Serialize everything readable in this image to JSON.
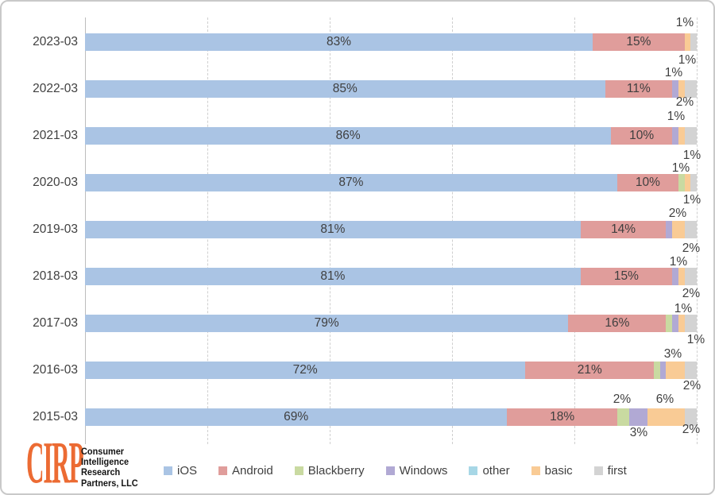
{
  "chart_data": {
    "type": "bar",
    "orientation": "horizontal",
    "stacked": true,
    "title": "",
    "xlabel": "",
    "ylabel": "",
    "xlim": [
      0,
      100
    ],
    "grid": "vertical-dashed",
    "gridline_percents": [
      0,
      20,
      40,
      60,
      80,
      100
    ],
    "legend_position": "bottom",
    "categories": [
      "2023-03",
      "2022-03",
      "2021-03",
      "2020-03",
      "2019-03",
      "2018-03",
      "2017-03",
      "2016-03",
      "2015-03"
    ],
    "series": [
      {
        "name": "iOS",
        "color": "#aac4e4",
        "values": [
          83,
          85,
          86,
          87,
          81,
          81,
          79,
          72,
          69
        ]
      },
      {
        "name": "Android",
        "color": "#e09d9b",
        "values": [
          15,
          11,
          10,
          10,
          14,
          15,
          16,
          21,
          18
        ]
      },
      {
        "name": "Blackberry",
        "color": "#c9daa1",
        "values": [
          0,
          0,
          0,
          1,
          0,
          0,
          1,
          1,
          2
        ]
      },
      {
        "name": "Windows",
        "color": "#b1a9d4",
        "values": [
          0,
          1,
          1,
          0,
          1,
          1,
          1,
          1,
          3
        ]
      },
      {
        "name": "other",
        "color": "#a7d7e6",
        "values": [
          0,
          0,
          0,
          0,
          0,
          0,
          0,
          0,
          0
        ]
      },
      {
        "name": "basic",
        "color": "#f9cb95",
        "values": [
          1,
          1,
          1,
          1,
          2,
          1,
          1,
          3,
          6
        ]
      },
      {
        "name": "first",
        "color": "#d3d3d3",
        "values": [
          1,
          2,
          2,
          1,
          2,
          2,
          2,
          2,
          2
        ]
      }
    ],
    "inside_label_min_value": 10,
    "inside_label_suffix": "%",
    "callout_labels": [
      {
        "text": "1%",
        "x": 860,
        "y": 27
      },
      {
        "text": "1%",
        "x": 863,
        "y": 74
      },
      {
        "text": "1%",
        "x": 846,
        "y": 90
      },
      {
        "text": "2%",
        "x": 860,
        "y": 127
      },
      {
        "text": "1%",
        "x": 849,
        "y": 145
      },
      {
        "text": "1%",
        "x": 869,
        "y": 194
      },
      {
        "text": "1%",
        "x": 855,
        "y": 210
      },
      {
        "text": "1%",
        "x": 869,
        "y": 250
      },
      {
        "text": "2%",
        "x": 851,
        "y": 267
      },
      {
        "text": "2%",
        "x": 868,
        "y": 311
      },
      {
        "text": "1%",
        "x": 852,
        "y": 328
      },
      {
        "text": "2%",
        "x": 868,
        "y": 368
      },
      {
        "text": "1%",
        "x": 858,
        "y": 387
      },
      {
        "text": "1%",
        "x": 874,
        "y": 426
      },
      {
        "text": "3%",
        "x": 845,
        "y": 444
      },
      {
        "text": "2%",
        "x": 869,
        "y": 484
      },
      {
        "text": "2%",
        "x": 781,
        "y": 501
      },
      {
        "text": "6%",
        "x": 835,
        "y": 501
      },
      {
        "text": "3%",
        "x": 802,
        "y": 543
      },
      {
        "text": "2%",
        "x": 868,
        "y": 539
      }
    ]
  },
  "legend": {
    "items": [
      {
        "label": "iOS",
        "color": "#aac4e4"
      },
      {
        "label": "Android",
        "color": "#e09d9b"
      },
      {
        "label": "Blackberry",
        "color": "#c9daa1"
      },
      {
        "label": "Windows",
        "color": "#b1a9d4"
      },
      {
        "label": "other",
        "color": "#a7d7e6"
      },
      {
        "label": "basic",
        "color": "#f9cb95"
      },
      {
        "label": "first",
        "color": "#d3d3d3"
      }
    ]
  },
  "logo": {
    "brand": "CIRP",
    "brand_color": "#ec6b33",
    "lines": [
      "Consumer",
      "Intelligence",
      "Research",
      "Partners, LLC"
    ]
  }
}
